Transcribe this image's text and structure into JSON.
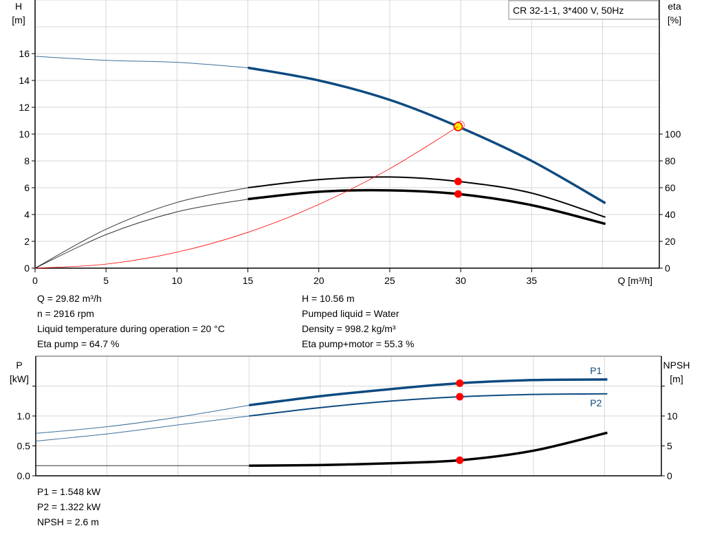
{
  "chart_data": [
    {
      "type": "line",
      "title": "CR 32-1-1, 3*400 V, 50Hz",
      "xlabel": "Q [m³/h]",
      "xlim": [
        0,
        44
      ],
      "xticks": [
        0,
        5,
        10,
        15,
        20,
        25,
        30,
        35
      ],
      "ylabel": "H",
      "yunit": "[m]",
      "ylim": [
        0,
        20
      ],
      "yticks": [
        0,
        2,
        4,
        6,
        8,
        10,
        12,
        14,
        16
      ],
      "y2label": "eta",
      "y2unit": "[%]",
      "y2lim": [
        0,
        200
      ],
      "y2ticks": [
        0,
        20,
        40,
        60,
        80,
        100
      ],
      "grid": true,
      "series": [
        {
          "id": "H",
          "axis": "left",
          "color": "#0d4a80",
          "x": [
            0,
            5,
            10,
            15,
            20,
            25,
            29.82,
            35,
            40.2
          ],
          "y": [
            15.8,
            15.5,
            15.35,
            14.95,
            14.0,
            12.55,
            10.56,
            8.0,
            4.85
          ]
        },
        {
          "id": "eta-pump",
          "axis": "right",
          "color": "#000000",
          "x": [
            0,
            5,
            10,
            15,
            20,
            25,
            29.82,
            35,
            40.2
          ],
          "y": [
            0,
            29,
            49,
            60,
            66,
            68,
            64.7,
            56,
            38
          ]
        },
        {
          "id": "eta-pump-motor",
          "axis": "right",
          "color": "#000000",
          "x": [
            0,
            5,
            10,
            15,
            20,
            25,
            29.82,
            35,
            40.2
          ],
          "y": [
            0,
            25,
            42,
            51.5,
            57,
            58,
            55.3,
            47,
            33
          ]
        },
        {
          "id": "system-curve",
          "axis": "left",
          "color": "#ff0000",
          "x": [
            0,
            5,
            10,
            15,
            20,
            25,
            29.82
          ],
          "y": [
            0,
            0.3,
            1.19,
            2.67,
            4.75,
            7.42,
            10.56
          ]
        }
      ],
      "duty_point": {
        "Q": 29.82,
        "H": 10.56,
        "eta_pump": 64.7,
        "eta_pump_motor": 55.3
      }
    },
    {
      "type": "line",
      "xlim": [
        0,
        44
      ],
      "xticks": [
        0,
        5,
        10,
        15,
        20,
        25,
        30,
        35,
        40
      ],
      "ylabel": "P",
      "yunit": "[kW]",
      "ylim": [
        0,
        2
      ],
      "yticks": [
        "0.0",
        "0.5",
        "1.0"
      ],
      "y2label": "NPSH",
      "y2unit": "[m]",
      "y2lim": [
        0,
        20
      ],
      "y2ticks": [
        0,
        5,
        10
      ],
      "grid": true,
      "series": [
        {
          "name": "P1",
          "axis": "left",
          "color": "#0d4a80",
          "x": [
            0,
            5,
            10,
            15,
            20,
            25,
            29.82,
            35,
            40.2
          ],
          "y": [
            0.71,
            0.82,
            0.98,
            1.18,
            1.33,
            1.45,
            1.548,
            1.6,
            1.61
          ]
        },
        {
          "name": "P2",
          "axis": "left",
          "color": "#0d4a80",
          "x": [
            0,
            5,
            10,
            15,
            20,
            25,
            29.82,
            35,
            40.2
          ],
          "y": [
            0.58,
            0.7,
            0.85,
            1.0,
            1.14,
            1.25,
            1.322,
            1.36,
            1.37
          ]
        },
        {
          "id": "NPSH",
          "axis": "right",
          "color": "#000000",
          "x": [
            0,
            5,
            10,
            15,
            20,
            25,
            29.82,
            35,
            40.2
          ],
          "y": [
            1.7,
            1.7,
            1.7,
            1.7,
            1.8,
            2.1,
            2.6,
            4.2,
            7.2
          ]
        }
      ],
      "duty_point": {
        "Q": 29.82,
        "P1": 1.548,
        "P2": 1.322,
        "NPSH": 2.6
      }
    }
  ],
  "info_top_left": [
    "Q = 29.82 m³/h",
    "n = 2916 rpm",
    "Liquid temperature during operation = 20 °C",
    "Eta pump = 64.7 %"
  ],
  "info_top_right": [
    "H = 10.56 m",
    "Pumped liquid = Water",
    "Density = 998.2 kg/m³",
    "Eta pump+motor = 55.3 %"
  ],
  "info_bottom": [
    "P1 = 1.548 kW",
    "P2 = 1.322 kW",
    "NPSH = 2.6 m"
  ]
}
